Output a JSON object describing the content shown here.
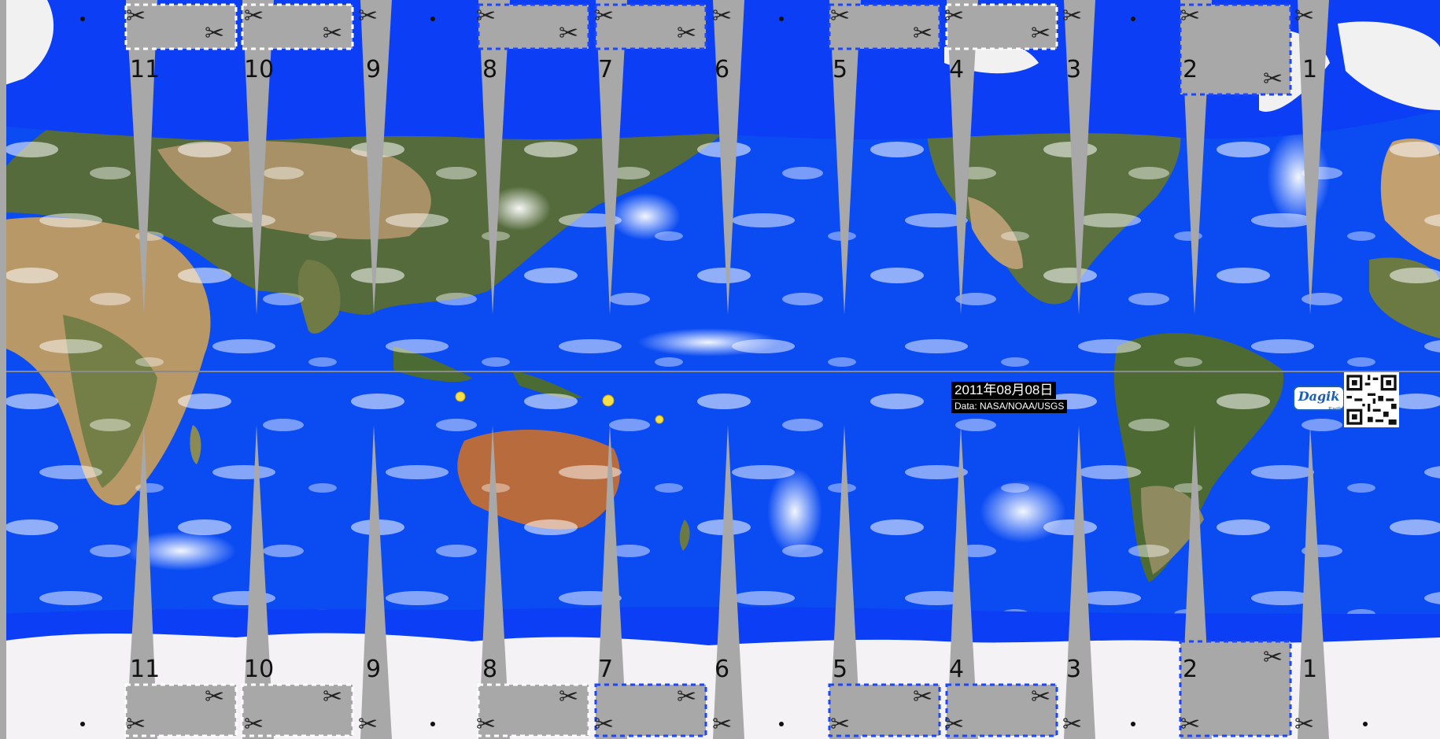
{
  "date_label": "2011年08月08日",
  "credit_label": "Data: NASA/NOAA/USGS",
  "logo": {
    "text": "Dagik",
    "sub": "Earth"
  },
  "gore_numbers": [
    "11",
    "10",
    "9",
    "8",
    "7",
    "6",
    "5",
    "4",
    "3",
    "2",
    "1"
  ],
  "colors": {
    "ocean": "#0a4bf2",
    "polar_ocean": "#0c3ff5",
    "cut_margin": "#a8a8a8",
    "dashed_line_white": "#ffffff",
    "dashed_line_blue": "#1d47ff",
    "land_green": "#4f6a3a",
    "land_desert": "#c9a27a",
    "ice": "#f3f3f3",
    "marker": "#f6e04a"
  },
  "icons": [
    "scissors-icon",
    "qr-code-icon",
    "dagik-logo-icon"
  ]
}
